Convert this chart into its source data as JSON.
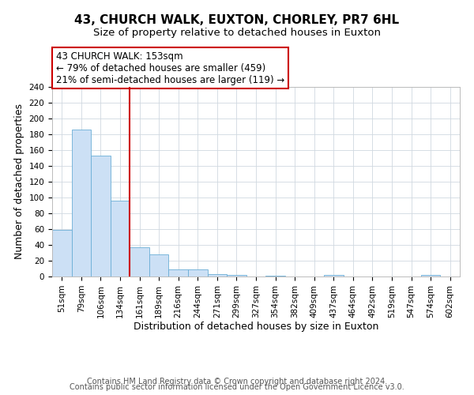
{
  "title": "43, CHURCH WALK, EUXTON, CHORLEY, PR7 6HL",
  "subtitle": "Size of property relative to detached houses in Euxton",
  "xlabel": "Distribution of detached houses by size in Euxton",
  "ylabel": "Number of detached properties",
  "bin_labels": [
    "51sqm",
    "79sqm",
    "106sqm",
    "134sqm",
    "161sqm",
    "189sqm",
    "216sqm",
    "244sqm",
    "271sqm",
    "299sqm",
    "327sqm",
    "354sqm",
    "382sqm",
    "409sqm",
    "437sqm",
    "464sqm",
    "492sqm",
    "519sqm",
    "547sqm",
    "574sqm",
    "602sqm"
  ],
  "bar_values": [
    59,
    186,
    153,
    96,
    37,
    28,
    9,
    9,
    3,
    2,
    0,
    1,
    0,
    0,
    2,
    0,
    0,
    0,
    0,
    2,
    0
  ],
  "bar_color": "#cce0f5",
  "bar_edgecolor": "#6aaed6",
  "vline_color": "#cc0000",
  "ylim": [
    0,
    240
  ],
  "yticks": [
    0,
    20,
    40,
    60,
    80,
    100,
    120,
    140,
    160,
    180,
    200,
    220,
    240
  ],
  "annotation_title": "43 CHURCH WALK: 153sqm",
  "annotation_line1": "← 79% of detached houses are smaller (459)",
  "annotation_line2": "21% of semi-detached houses are larger (119) →",
  "annotation_box_color": "#ffffff",
  "annotation_box_edgecolor": "#cc0000",
  "footer1": "Contains HM Land Registry data © Crown copyright and database right 2024.",
  "footer2": "Contains public sector information licensed under the Open Government Licence v3.0.",
  "title_fontsize": 11,
  "subtitle_fontsize": 9.5,
  "axis_label_fontsize": 9,
  "tick_fontsize": 7.5,
  "annotation_fontsize": 8.5,
  "footer_fontsize": 7
}
